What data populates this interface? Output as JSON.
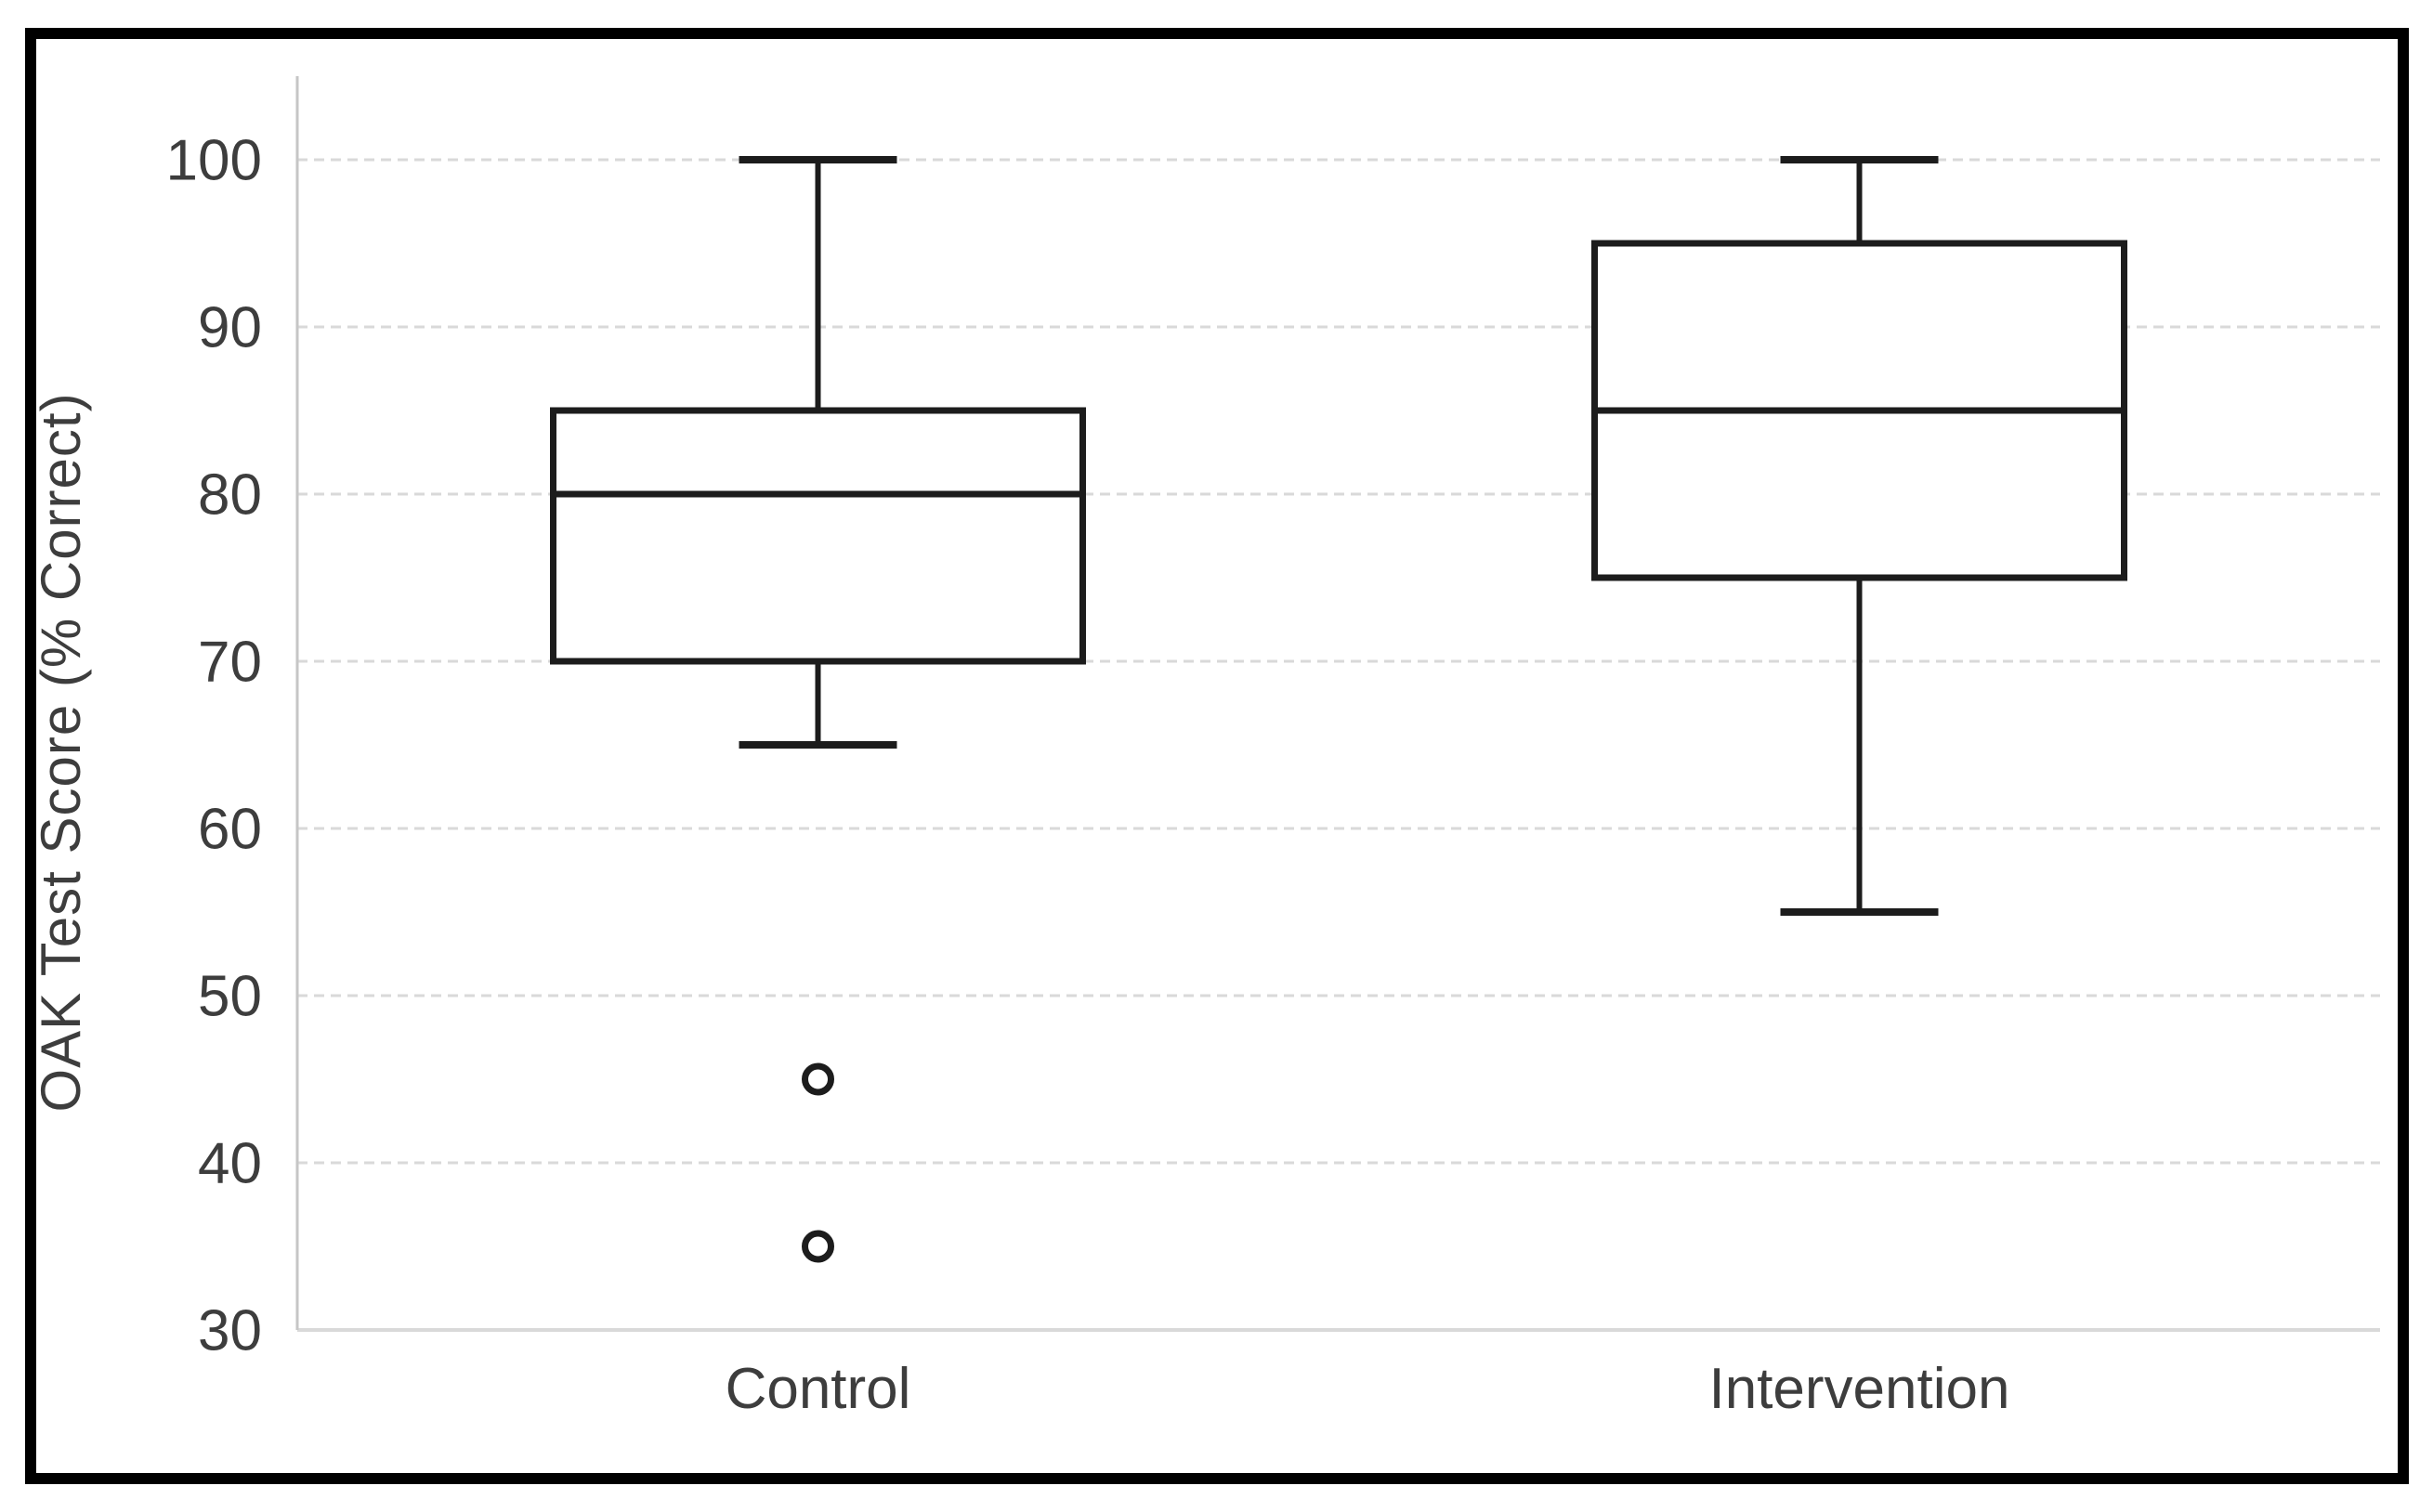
{
  "figure": {
    "background": "#ffffff",
    "border_color": "#000000"
  },
  "chart_data": {
    "type": "boxplot",
    "title": "",
    "ylabel": "OAK Test Score (% Correct)",
    "xlabel": "",
    "categories": [
      "Control",
      "Intervention"
    ],
    "series": [
      {
        "name": "Control",
        "whisker_low": 65,
        "q1": 70,
        "median": 80,
        "q3": 85,
        "whisker_high": 100,
        "outliers": [
          45,
          35
        ]
      },
      {
        "name": "Intervention",
        "whisker_low": 55,
        "q1": 75,
        "median": 85,
        "q3": 95,
        "whisker_high": 100,
        "outliers": []
      }
    ],
    "y_ticks": [
      100,
      90,
      80,
      70,
      60,
      50,
      40,
      30
    ],
    "ylim": [
      30,
      105
    ],
    "grid": true,
    "legend_position": "none",
    "colors": {
      "box_stroke": "#1c1c1c",
      "box_fill": "#ffffff",
      "grid_line": "#d9d9d9",
      "axis_line": "#c6c6c6",
      "text": "#3d3d3d"
    }
  }
}
